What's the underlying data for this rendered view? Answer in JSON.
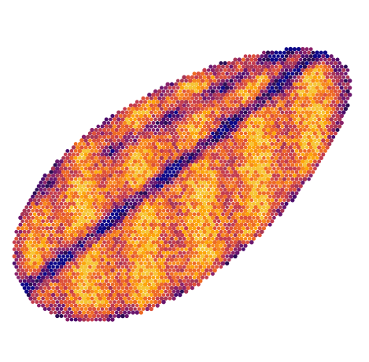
{
  "figure": {
    "colormap": "inferno",
    "palette": [
      "#0d0887",
      "#2a0d53",
      "#4b0c6b",
      "#6a176e",
      "#8a226a",
      "#a83655",
      "#c43c4e",
      "#dd513a",
      "#ee6a24",
      "#f7891b",
      "#fca50a",
      "#f6c433"
    ],
    "background": "#ffffff",
    "shape": "elongated point-cloud blob with dark diagonal ridge lines",
    "marker": "dot"
  }
}
